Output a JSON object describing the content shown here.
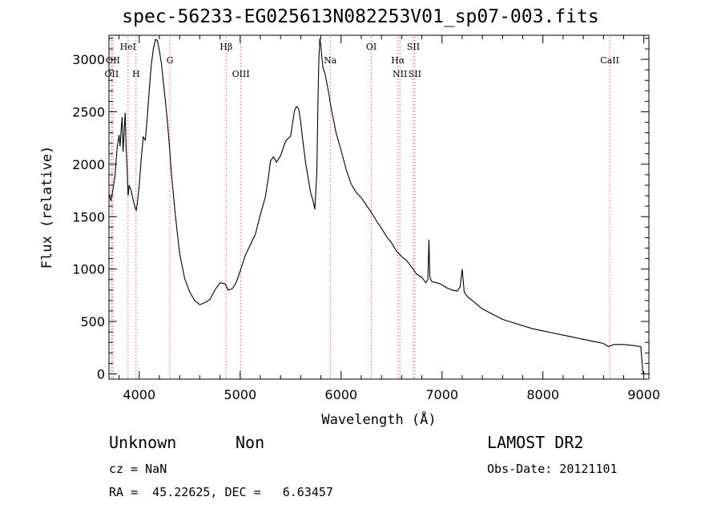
{
  "chart_data": {
    "type": "line",
    "title": "spec-56233-EG025613N082253V01_sp07-003.fits",
    "xlabel": "Wavelength (Å)",
    "ylabel": "Flux (relative)",
    "xlim": [
      3700,
      9050
    ],
    "ylim": [
      -50,
      3230
    ],
    "xticks": [
      4000,
      5000,
      6000,
      7000,
      8000,
      9000
    ],
    "yticks": [
      0,
      500,
      1000,
      1500,
      2000,
      2500,
      3000
    ],
    "grid": false,
    "series": [
      {
        "color": "#000000",
        "x": [
          3700,
          3720,
          3740,
          3760,
          3780,
          3800,
          3810,
          3820,
          3830,
          3840,
          3850,
          3860,
          3870,
          3880,
          3890,
          3900,
          3920,
          3940,
          3960,
          3970,
          3980,
          4000,
          4020,
          4040,
          4060,
          4080,
          4100,
          4120,
          4140,
          4160,
          4180,
          4200,
          4220,
          4240,
          4260,
          4280,
          4300,
          4320,
          4340,
          4360,
          4380,
          4400,
          4450,
          4500,
          4550,
          4600,
          4650,
          4700,
          4750,
          4800,
          4850,
          4880,
          4920,
          4960,
          5000,
          5050,
          5100,
          5150,
          5200,
          5250,
          5280,
          5300,
          5330,
          5360,
          5400,
          5450,
          5500,
          5540,
          5560,
          5580,
          5600,
          5620,
          5650,
          5700,
          5720,
          5740,
          5760,
          5770,
          5780,
          5790,
          5800,
          5810,
          5820,
          5840,
          5860,
          5880,
          5900,
          5950,
          6000,
          6050,
          6100,
          6150,
          6200,
          6250,
          6300,
          6350,
          6400,
          6450,
          6500,
          6550,
          6600,
          6650,
          6700,
          6750,
          6800,
          6840,
          6860,
          6870,
          6880,
          6900,
          6950,
          7000,
          7050,
          7100,
          7150,
          7180,
          7200,
          7220,
          7250,
          7300,
          7400,
          7500,
          7600,
          7700,
          7800,
          7900,
          8000,
          8100,
          8200,
          8300,
          8400,
          8500,
          8600,
          8650,
          8700,
          8800,
          8900,
          8970,
          8990,
          9000
        ],
        "y": [
          1720,
          1650,
          1760,
          1890,
          2150,
          2280,
          2170,
          2310,
          2450,
          2120,
          2300,
          2490,
          2170,
          1950,
          1700,
          1800,
          1750,
          1660,
          1580,
          1560,
          1620,
          1800,
          2050,
          2260,
          2230,
          2450,
          2720,
          2950,
          3100,
          3190,
          3180,
          3080,
          2960,
          2780,
          2600,
          2400,
          2160,
          1900,
          1700,
          1500,
          1320,
          1150,
          910,
          780,
          700,
          660,
          680,
          710,
          800,
          870,
          860,
          800,
          810,
          870,
          980,
          1130,
          1230,
          1330,
          1520,
          1690,
          1880,
          2030,
          2070,
          2020,
          2080,
          2220,
          2270,
          2520,
          2550,
          2530,
          2400,
          2230,
          2000,
          1720,
          1660,
          1570,
          1920,
          2550,
          3000,
          3200,
          3120,
          3020,
          2920,
          2870,
          2770,
          2670,
          2540,
          2300,
          2130,
          1950,
          1810,
          1730,
          1680,
          1610,
          1540,
          1460,
          1390,
          1310,
          1250,
          1170,
          1120,
          1080,
          1020,
          950,
          920,
          870,
          900,
          1280,
          920,
          880,
          870,
          850,
          820,
          800,
          790,
          830,
          1000,
          780,
          740,
          700,
          620,
          570,
          520,
          490,
          460,
          430,
          410,
          390,
          370,
          350,
          330,
          310,
          290,
          260,
          280,
          280,
          270,
          260,
          20,
          0
        ]
      }
    ],
    "line_labels": [
      {
        "text": "OII",
        "x": 3727,
        "row": 2,
        "color": "#000000",
        "line_color": "#e06060"
      },
      {
        "text": "OII",
        "x": 3740,
        "row": 1,
        "color": "#000000",
        "line_color": "#e06060"
      },
      {
        "text": "HeI",
        "x": 3889,
        "row": 0,
        "color": "#000000",
        "line_color": "#e06060"
      },
      {
        "text": "H",
        "x": 3968,
        "row": 2,
        "color": "#000000",
        "line_color": "#e06060"
      },
      {
        "text": "G",
        "x": 4304,
        "row": 1,
        "color": "#000000",
        "line_color": "#e06060"
      },
      {
        "text": "Hβ",
        "x": 4861,
        "row": 0,
        "color": "#000000",
        "line_color": "#e06060"
      },
      {
        "text": "OIII",
        "x": 5007,
        "row": 2,
        "color": "#000000",
        "line_color": "#e06060"
      },
      {
        "text": "Na",
        "x": 5893,
        "row": 1,
        "color": "#000000",
        "line_color": "#e06060"
      },
      {
        "text": "OI",
        "x": 6300,
        "row": 0,
        "color": "#000000",
        "line_color": "#e06060"
      },
      {
        "text": "Hα",
        "x": 6563,
        "row": 1,
        "color": "#000000",
        "line_color": "#e06060"
      },
      {
        "text": "NII",
        "x": 6583,
        "row": 2,
        "color": "#000000",
        "line_color": "#e06060"
      },
      {
        "text": "SII",
        "x": 6716,
        "row": 0,
        "color": "#000000",
        "line_color": "#e06060"
      },
      {
        "text": "SII",
        "x": 6731,
        "row": 2,
        "color": "#000000",
        "line_color": "#e06060"
      },
      {
        "text": "CaII",
        "x": 8662,
        "row": 1,
        "color": "#000000",
        "line_color": "#e06060"
      }
    ]
  },
  "info": {
    "class": "Unknown",
    "subclass": "Non",
    "cz": "cz = NaN",
    "radec": "RA =  45.22625, DEC =   6.63457",
    "survey": "LAMOST DR2",
    "obsdate": "Obs-Date: 20121101"
  }
}
